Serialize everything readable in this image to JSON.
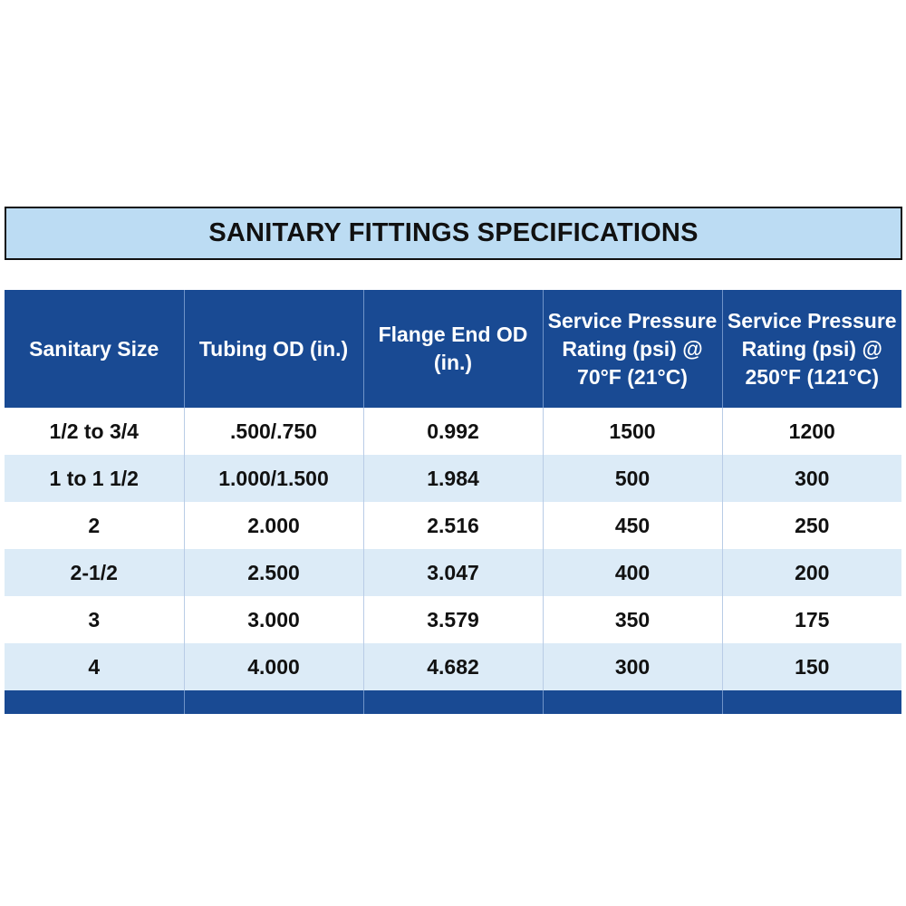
{
  "title": "SANITARY FITTINGS SPECIFICATIONS",
  "table": {
    "headers": [
      "Sanitary Size",
      "Tubing OD (in.)",
      "Flange End OD (in.)",
      "Service Pressure Rating (psi) @ 70°F (21°C)",
      "Service Pressure Rating (psi) @ 250°F (121°C)"
    ],
    "rows": [
      [
        "1/2 to 3/4",
        ".500/.750",
        "0.992",
        "1500",
        "1200"
      ],
      [
        "1 to 1 1/2",
        "1.000/1.500",
        "1.984",
        "500",
        "300"
      ],
      [
        "2",
        "2.000",
        "2.516",
        "450",
        "250"
      ],
      [
        "2-1/2",
        "2.500",
        "3.047",
        "400",
        "200"
      ],
      [
        "3",
        "3.000",
        "3.579",
        "350",
        "175"
      ],
      [
        "4",
        "4.000",
        "4.682",
        "300",
        "150"
      ]
    ]
  },
  "colors": {
    "header_bg": "#194a93",
    "title_bg": "#bcdcf3",
    "row_alt_bg": "#dcebf7"
  }
}
